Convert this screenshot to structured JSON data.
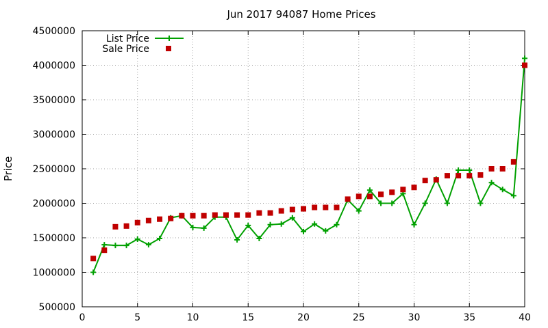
{
  "chart_data": {
    "type": "line",
    "title": "Jun 2017 94087 Home Prices",
    "xlabel": "",
    "ylabel": "Price",
    "xlim": [
      0,
      40
    ],
    "ylim": [
      500000,
      4500000
    ],
    "xticks": [
      0,
      5,
      10,
      15,
      20,
      25,
      30,
      35,
      40
    ],
    "yticks": [
      500000,
      1000000,
      1500000,
      2000000,
      2500000,
      3000000,
      3500000,
      4000000,
      4500000
    ],
    "grid": true,
    "legend_position": "top-left",
    "series": [
      {
        "name": "List Price",
        "style": "line+cross",
        "color": "#00a000",
        "x": [
          1,
          2,
          3,
          4,
          5,
          6,
          7,
          8,
          9,
          10,
          11,
          12,
          13,
          14,
          15,
          16,
          17,
          18,
          19,
          20,
          21,
          22,
          23,
          24,
          25,
          26,
          27,
          28,
          29,
          30,
          31,
          32,
          33,
          34,
          35,
          36,
          37,
          38,
          39,
          40
        ],
        "y": [
          1000000,
          1400000,
          1390000,
          1390000,
          1480000,
          1400000,
          1490000,
          1790000,
          1820000,
          1650000,
          1640000,
          1800000,
          1800000,
          1470000,
          1680000,
          1490000,
          1690000,
          1700000,
          1790000,
          1590000,
          1700000,
          1600000,
          1690000,
          2050000,
          1890000,
          2190000,
          2000000,
          2000000,
          2140000,
          1690000,
          2000000,
          2350000,
          2000000,
          2480000,
          2480000,
          2000000,
          2300000,
          2200000,
          2110000,
          4100000
        ]
      },
      {
        "name": "Sale Price",
        "style": "points-square",
        "color": "#c00000",
        "x": [
          1,
          2,
          3,
          4,
          5,
          6,
          7,
          8,
          9,
          10,
          11,
          12,
          13,
          14,
          15,
          16,
          17,
          18,
          19,
          20,
          21,
          22,
          23,
          24,
          25,
          26,
          27,
          28,
          29,
          30,
          31,
          32,
          33,
          34,
          35,
          36,
          37,
          38,
          39,
          40
        ],
        "y": [
          1200000,
          1320000,
          1660000,
          1670000,
          1720000,
          1750000,
          1770000,
          1780000,
          1820000,
          1820000,
          1820000,
          1830000,
          1830000,
          1830000,
          1830000,
          1860000,
          1860000,
          1890000,
          1910000,
          1920000,
          1940000,
          1940000,
          1940000,
          2060000,
          2100000,
          2100000,
          2130000,
          2160000,
          2200000,
          2230000,
          2330000,
          2340000,
          2400000,
          2400000,
          2400000,
          2410000,
          2500000,
          2500000,
          2600000,
          4000000
        ]
      }
    ]
  }
}
